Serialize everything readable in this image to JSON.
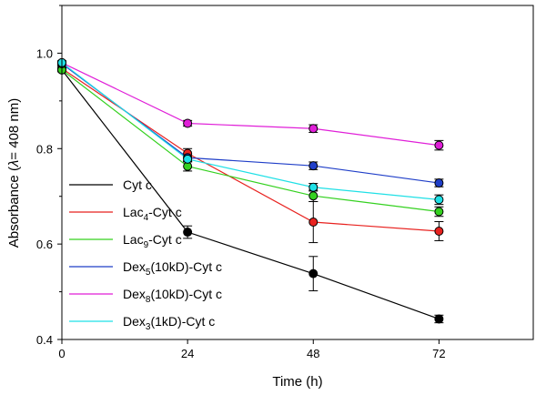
{
  "chart_data": {
    "type": "line",
    "xlabel": "Time (h)",
    "ylabel": {
      "prefix": "Absorbance (",
      "symbol": "λ",
      "suffix": "= 408 nm)"
    },
    "xlim": [
      0,
      90
    ],
    "ylim": [
      0.4,
      1.1
    ],
    "x_ticks": [
      "0",
      "24",
      "48",
      "72"
    ],
    "y_ticks": [
      "0.4",
      "0.6",
      "0.8",
      "1.0"
    ],
    "legend_position": "bottom-left",
    "x": [
      0,
      24,
      48,
      72
    ],
    "series": [
      {
        "name": "Cyt c",
        "parts": [
          [
            "Cyt c",
            false
          ]
        ],
        "color": "#000000",
        "values": [
          0.965,
          0.625,
          0.538,
          0.443
        ],
        "errors": [
          0.004,
          0.013,
          0.036,
          0.008
        ]
      },
      {
        "name": "Lac4-Cyt c",
        "parts": [
          [
            "Lac",
            false
          ],
          [
            "4",
            true
          ],
          [
            "-Cyt c",
            false
          ]
        ],
        "color": "#e8221f",
        "values": [
          0.968,
          0.79,
          0.646,
          0.627
        ],
        "errors": [
          0.004,
          0.01,
          0.043,
          0.02
        ]
      },
      {
        "name": "Lac9-Cyt c",
        "parts": [
          [
            "Lac",
            false
          ],
          [
            "9",
            true
          ],
          [
            "-Cyt c",
            false
          ]
        ],
        "color": "#34d11f",
        "values": [
          0.965,
          0.763,
          0.701,
          0.668
        ],
        "errors": [
          0.004,
          0.01,
          0.012,
          0.01
        ]
      },
      {
        "name": "Dex5(10kD)-Cyt c",
        "parts": [
          [
            "Dex",
            false
          ],
          [
            "5",
            true
          ],
          [
            "(10kD)-Cyt c",
            false
          ]
        ],
        "color": "#1f3ec8",
        "values": [
          0.978,
          0.781,
          0.764,
          0.728
        ],
        "errors": [
          0.004,
          0.006,
          0.008,
          0.008
        ]
      },
      {
        "name": "Dex8(10kD)-Cyt c",
        "parts": [
          [
            "Dex",
            false
          ],
          [
            "8",
            true
          ],
          [
            "(10kD)-Cyt c",
            false
          ]
        ],
        "color": "#e01fd8",
        "values": [
          0.98,
          0.853,
          0.842,
          0.807
        ],
        "errors": [
          0.004,
          0.006,
          0.008,
          0.01
        ]
      },
      {
        "name": "Dex3(1kD)-Cyt c",
        "parts": [
          [
            "Dex",
            false
          ],
          [
            "3",
            true
          ],
          [
            "(1kD)-Cyt c",
            false
          ]
        ],
        "color": "#1fe0e6",
        "values": [
          0.98,
          0.778,
          0.719,
          0.693
        ],
        "errors": [
          0.004,
          0.006,
          0.008,
          0.01
        ]
      }
    ]
  }
}
